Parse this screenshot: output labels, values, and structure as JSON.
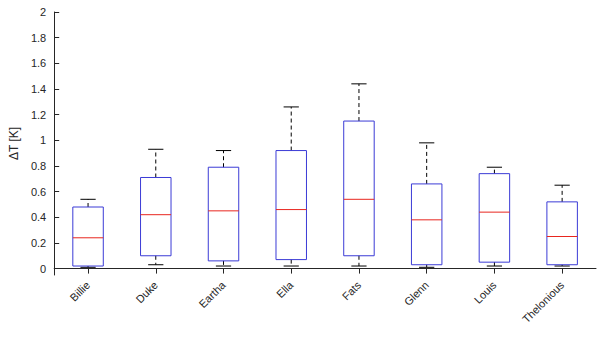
{
  "chart_data": {
    "type": "boxplot",
    "y_label": "ΔT [K]",
    "categories": [
      "Billie",
      "Duke",
      "Eartha",
      "Ella",
      "Fats",
      "Glenn",
      "Louis",
      "Thelonious"
    ],
    "values": [
      [
        0.01,
        0.02,
        0.24,
        0.48,
        0.54
      ],
      [
        0.03,
        0.1,
        0.42,
        0.71,
        0.93
      ],
      [
        0.02,
        0.06,
        0.45,
        0.79,
        0.92
      ],
      [
        0.02,
        0.07,
        0.46,
        0.92,
        1.26
      ],
      [
        0.02,
        0.1,
        0.54,
        1.15,
        1.44
      ],
      [
        0.01,
        0.03,
        0.38,
        0.66,
        0.98
      ],
      [
        0.02,
        0.05,
        0.44,
        0.74,
        0.79
      ],
      [
        0.02,
        0.03,
        0.25,
        0.52,
        0.65
      ]
    ],
    "color": "#3b3bd6",
    "line_style": "dashed",
    "ylim": [
      -0.05,
      2
    ],
    "yticks": [
      0,
      0.2,
      0.4,
      0.6,
      0.8,
      1,
      1.2,
      1.4,
      1.6,
      1.8,
      2
    ],
    "grid": false
  }
}
